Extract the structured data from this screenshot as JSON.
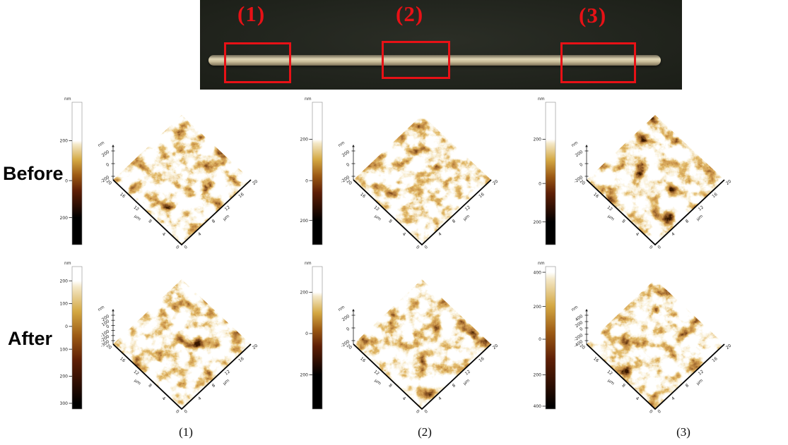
{
  "photo": {
    "description": "wire sample on dark background with three marked regions",
    "background_color": "#22251e",
    "rod_color": "#d5caa8",
    "annotation_color": "#e81116",
    "regions": [
      {
        "label": "(1)"
      },
      {
        "label": "(2)"
      },
      {
        "label": "(3)"
      }
    ]
  },
  "axes": {
    "xy_ticks": [
      "0",
      "4",
      "8",
      "12",
      "16",
      "20"
    ],
    "xy_unit": "µm"
  },
  "rows": [
    {
      "label": "Before",
      "panels": [
        {
          "colorbar": {
            "unit": "nm",
            "ticks": [
              {
                "label": "200",
                "pos": 0.27
              },
              {
                "label": "0",
                "pos": 0.55
              },
              {
                "label": "-200",
                "pos": 0.81
              }
            ]
          },
          "z_axis": {
            "unit": "nm",
            "ticks": [
              "200",
              "0",
              "-200"
            ]
          }
        },
        {
          "colorbar": {
            "unit": "nm",
            "ticks": [
              {
                "label": "200",
                "pos": 0.26
              },
              {
                "label": "0",
                "pos": 0.55
              },
              {
                "label": "-200",
                "pos": 0.83
              }
            ]
          },
          "z_axis": {
            "unit": "nm",
            "ticks": [
              "200",
              "0",
              "-200"
            ]
          }
        },
        {
          "colorbar": {
            "unit": "nm",
            "ticks": [
              {
                "label": "200",
                "pos": 0.26
              },
              {
                "label": "0",
                "pos": 0.57
              },
              {
                "label": "-200",
                "pos": 0.84
              }
            ]
          },
          "z_axis": {
            "unit": "nm",
            "ticks": [
              "200",
              "0",
              "-200"
            ]
          }
        }
      ]
    },
    {
      "label": "After",
      "panels": [
        {
          "colorbar": {
            "unit": "nm",
            "ticks": [
              {
                "label": "200",
                "pos": 0.1
              },
              {
                "label": "100",
                "pos": 0.26
              },
              {
                "label": "0",
                "pos": 0.42
              },
              {
                "label": "-100",
                "pos": 0.58
              },
              {
                "label": "-200",
                "pos": 0.77
              },
              {
                "label": "-300",
                "pos": 0.96
              }
            ]
          },
          "z_axis": {
            "unit": "nm",
            "ticks": [
              "200",
              "100",
              "0",
              "-100",
              "-200",
              "-300"
            ]
          }
        },
        {
          "colorbar": {
            "unit": "nm",
            "ticks": [
              {
                "label": "200",
                "pos": 0.18
              },
              {
                "label": "0",
                "pos": 0.47
              },
              {
                "label": "-200",
                "pos": 0.76
              }
            ]
          },
          "z_axis": {
            "unit": "nm",
            "ticks": [
              "200",
              "0",
              "-200"
            ]
          }
        },
        {
          "colorbar": {
            "unit": "nm",
            "ticks": [
              {
                "label": "400",
                "pos": 0.04
              },
              {
                "label": "200",
                "pos": 0.28
              },
              {
                "label": "0",
                "pos": 0.51
              },
              {
                "label": "-200",
                "pos": 0.76
              },
              {
                "label": "-400",
                "pos": 0.98
              }
            ]
          },
          "z_axis": {
            "unit": "nm",
            "ticks": [
              "400",
              "200",
              "0",
              "-200",
              "-400"
            ]
          }
        }
      ]
    }
  ],
  "bottom_labels": [
    "(1)",
    "(2)",
    "(3)"
  ],
  "colors": {
    "afm_colormap_top_to_bottom": [
      "#ffffff",
      "#f4e8c8",
      "#d4a843",
      "#9c5a14",
      "#5e1f06",
      "#2a0d02",
      "#000000"
    ],
    "red_annotation": "#e81116"
  }
}
